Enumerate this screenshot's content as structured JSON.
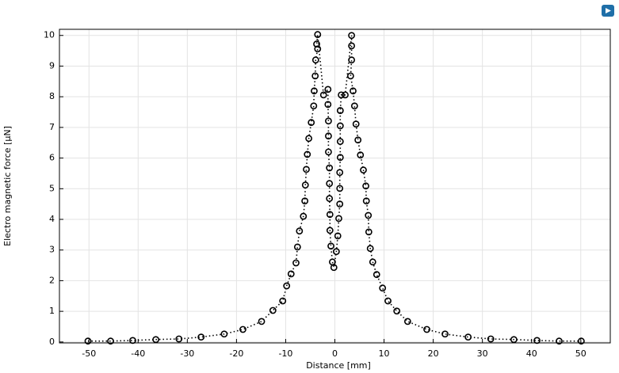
{
  "chart_data": {
    "type": "scatter_line",
    "xlabel": "Distance [mm]",
    "ylabel": "Electro magnetic force [µN]",
    "x": [
      -50.2,
      -45.6,
      -41.1,
      -36.4,
      -31.7,
      -27.2,
      -22.5,
      -18.7,
      -14.9,
      -12.6,
      -10.6,
      -9.8,
      -8.9,
      -7.9,
      -7.6,
      -7.2,
      -6.4,
      -6.1,
      -6.0,
      -5.8,
      -5.6,
      -5.3,
      -4.8,
      -4.3,
      -4.2,
      -4.0,
      -3.9,
      -3.5,
      -3.7,
      -3.5,
      -2.3,
      -1.4,
      -1.4,
      -1.3,
      -1.3,
      -1.3,
      -1.1,
      -1.1,
      -1.1,
      -1.0,
      -1.0,
      -0.8,
      -0.5,
      -0.2,
      0.3,
      0.6,
      0.8,
      1.0,
      1.0,
      1.0,
      1.1,
      1.1,
      1.1,
      1.1,
      1.3,
      2.1,
      3.4,
      3.4,
      3.4,
      3.2,
      3.7,
      4.0,
      4.3,
      4.7,
      5.2,
      5.8,
      6.3,
      6.4,
      6.8,
      6.9,
      7.2,
      7.7,
      8.5,
      9.7,
      10.8,
      12.6,
      14.8,
      18.7,
      22.4,
      27.1,
      31.7,
      36.4,
      41.1,
      45.6,
      50.1
    ],
    "values": [
      0.03,
      0.03,
      0.05,
      0.08,
      0.1,
      0.16,
      0.26,
      0.41,
      0.67,
      1.03,
      1.34,
      1.83,
      2.22,
      2.58,
      3.1,
      3.62,
      4.1,
      4.6,
      5.12,
      5.63,
      6.12,
      6.64,
      7.16,
      7.7,
      8.19,
      8.68,
      9.2,
      9.56,
      9.72,
      10.03,
      8.06,
      8.24,
      7.75,
      7.21,
      6.72,
      6.2,
      5.68,
      5.17,
      4.68,
      4.16,
      3.64,
      3.13,
      2.61,
      2.43,
      2.95,
      3.46,
      4.03,
      4.5,
      5.01,
      5.53,
      6.02,
      6.54,
      7.05,
      7.55,
      8.06,
      8.06,
      10.0,
      9.66,
      9.2,
      8.68,
      8.19,
      7.7,
      7.11,
      6.59,
      6.1,
      5.61,
      5.09,
      4.6,
      4.13,
      3.59,
      3.05,
      2.61,
      2.2,
      1.76,
      1.34,
      1.01,
      0.67,
      0.41,
      0.26,
      0.16,
      0.1,
      0.08,
      0.05,
      0.03,
      0.03
    ],
    "color": "#000000",
    "xlim": [
      -56,
      56
    ],
    "ylim": [
      -0.03,
      10.2
    ],
    "xticks": [
      -50,
      -40,
      -30,
      -20,
      -10,
      0,
      10,
      20,
      30,
      40,
      50
    ],
    "yticks": [
      0,
      1,
      2,
      3,
      4,
      5,
      6,
      7,
      8,
      9,
      10
    ],
    "grid": true
  }
}
